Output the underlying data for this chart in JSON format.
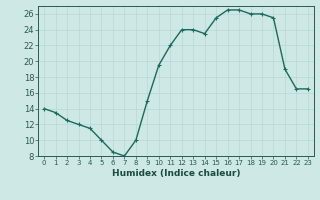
{
  "title": "",
  "xlabel": "Humidex (Indice chaleur)",
  "ylabel": "",
  "x": [
    0,
    1,
    2,
    3,
    4,
    5,
    6,
    7,
    8,
    9,
    10,
    11,
    12,
    13,
    14,
    15,
    16,
    17,
    18,
    19,
    20,
    21,
    22,
    23
  ],
  "y": [
    14,
    13.5,
    12.5,
    12,
    11.5,
    10,
    8.5,
    8,
    10,
    15,
    19.5,
    22,
    24,
    24,
    23.5,
    25.5,
    26.5,
    26.5,
    26,
    26,
    25.5,
    19,
    16.5,
    16.5
  ],
  "line_color": "#1a6b5a",
  "marker": "+",
  "marker_size": 3,
  "background_color": "#cde8e5",
  "grid_color": "#b8d8d5",
  "tick_color": "#2a5a50",
  "label_color": "#1a4a40",
  "ylim": [
    8,
    27
  ],
  "xlim": [
    -0.5,
    23.5
  ],
  "yticks": [
    8,
    10,
    12,
    14,
    16,
    18,
    20,
    22,
    24,
    26
  ],
  "xticks": [
    0,
    1,
    2,
    3,
    4,
    5,
    6,
    7,
    8,
    9,
    10,
    11,
    12,
    13,
    14,
    15,
    16,
    17,
    18,
    19,
    20,
    21,
    22,
    23
  ],
  "xtick_labels": [
    "0",
    "1",
    "2",
    "3",
    "4",
    "5",
    "6",
    "7",
    "8",
    "9",
    "10",
    "11",
    "12",
    "13",
    "14",
    "15",
    "16",
    "17",
    "18",
    "19",
    "20",
    "21",
    "22",
    "23"
  ]
}
